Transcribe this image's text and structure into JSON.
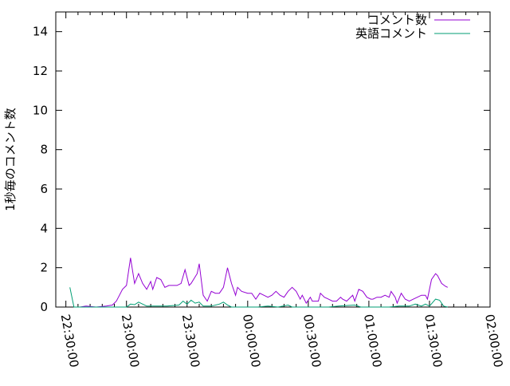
{
  "chart_data": {
    "type": "line",
    "title": "",
    "xlabel": "",
    "ylabel": "1秒毎のコメント数",
    "xlim": [
      "22:25:00",
      "02:00:00"
    ],
    "ylim": [
      0,
      15
    ],
    "grid": false,
    "legend_position": "top-right",
    "x_ticks": [
      "22:30:00",
      "23:00:00",
      "23:30:00",
      "00:00:00",
      "00:30:00",
      "01:00:00",
      "01:30:00",
      "02:00:00"
    ],
    "y_ticks": [
      "0",
      "2",
      "4",
      "6",
      "8",
      "10",
      "12",
      "14"
    ],
    "series": [
      {
        "name": "コメント数",
        "color": "#9400d3",
        "points": [
          [
            "22:37",
            0
          ],
          [
            "22:40",
            0.05
          ],
          [
            "22:45",
            0
          ],
          [
            "22:50",
            0.05
          ],
          [
            "22:53",
            0.1
          ],
          [
            "22:55",
            0.3
          ],
          [
            "22:56",
            0.5
          ],
          [
            "22:58",
            0.9
          ],
          [
            "23:00",
            1.1
          ],
          [
            "23:02",
            2.5
          ],
          [
            "23:04",
            1.2
          ],
          [
            "23:06",
            1.7
          ],
          [
            "23:08",
            1.2
          ],
          [
            "23:10",
            0.9
          ],
          [
            "23:12",
            1.3
          ],
          [
            "23:13",
            0.9
          ],
          [
            "23:15",
            1.5
          ],
          [
            "23:17",
            1.4
          ],
          [
            "23:19",
            1.0
          ],
          [
            "23:21",
            1.1
          ],
          [
            "23:23",
            1.1
          ],
          [
            "23:25",
            1.1
          ],
          [
            "23:27",
            1.2
          ],
          [
            "23:29",
            1.9
          ],
          [
            "23:31",
            1.1
          ],
          [
            "23:32",
            1.2
          ],
          [
            "23:35",
            1.7
          ],
          [
            "23:36",
            2.2
          ],
          [
            "23:38",
            0.6
          ],
          [
            "23:40",
            0.3
          ],
          [
            "23:42",
            0.8
          ],
          [
            "23:44",
            0.7
          ],
          [
            "23:46",
            0.7
          ],
          [
            "23:48",
            1.0
          ],
          [
            "23:50",
            2.0
          ],
          [
            "23:52",
            1.2
          ],
          [
            "23:54",
            0.6
          ],
          [
            "23:55",
            1.0
          ],
          [
            "23:57",
            0.8
          ],
          [
            "00:00",
            0.7
          ],
          [
            "00:02",
            0.7
          ],
          [
            "00:04",
            0.4
          ],
          [
            "00:06",
            0.7
          ],
          [
            "00:08",
            0.6
          ],
          [
            "00:10",
            0.5
          ],
          [
            "00:12",
            0.6
          ],
          [
            "00:14",
            0.8
          ],
          [
            "00:16",
            0.6
          ],
          [
            "00:18",
            0.5
          ],
          [
            "00:20",
            0.8
          ],
          [
            "00:22",
            1.0
          ],
          [
            "00:24",
            0.8
          ],
          [
            "00:26",
            0.4
          ],
          [
            "00:27",
            0.6
          ],
          [
            "00:29",
            0.2
          ],
          [
            "00:31",
            0.5
          ],
          [
            "00:32",
            0.3
          ],
          [
            "00:35",
            0.3
          ],
          [
            "00:36",
            0.7
          ],
          [
            "00:38",
            0.5
          ],
          [
            "00:40",
            0.4
          ],
          [
            "00:42",
            0.3
          ],
          [
            "00:44",
            0.3
          ],
          [
            "00:46",
            0.5
          ],
          [
            "00:47",
            0.4
          ],
          [
            "00:49",
            0.3
          ],
          [
            "00:52",
            0.6
          ],
          [
            "00:53",
            0.3
          ],
          [
            "00:55",
            0.9
          ],
          [
            "00:57",
            0.8
          ],
          [
            "00:59",
            0.5
          ],
          [
            "01:01",
            0.4
          ],
          [
            "01:02",
            0.4
          ],
          [
            "01:04",
            0.5
          ],
          [
            "01:06",
            0.5
          ],
          [
            "01:08",
            0.6
          ],
          [
            "01:10",
            0.5
          ],
          [
            "01:11",
            0.8
          ],
          [
            "01:13",
            0.5
          ],
          [
            "01:14",
            0.2
          ],
          [
            "01:16",
            0.7
          ],
          [
            "01:18",
            0.4
          ],
          [
            "01:20",
            0.3
          ],
          [
            "01:22",
            0.4
          ],
          [
            "01:24",
            0.5
          ],
          [
            "01:26",
            0.6
          ],
          [
            "01:28",
            0.6
          ],
          [
            "01:29",
            0.4
          ],
          [
            "01:31",
            1.4
          ],
          [
            "01:33",
            1.7
          ],
          [
            "01:34",
            1.6
          ],
          [
            "01:36",
            1.2
          ],
          [
            "01:38",
            1.05
          ],
          [
            "01:39",
            1.0
          ]
        ]
      },
      {
        "name": "英語コメント",
        "color": "#009e73",
        "points": [
          [
            "22:32",
            1.0
          ],
          [
            "22:34",
            0
          ],
          [
            "22:40",
            0
          ],
          [
            "23:00",
            0
          ],
          [
            "23:02",
            0.15
          ],
          [
            "23:04",
            0.12
          ],
          [
            "23:06",
            0.25
          ],
          [
            "23:08",
            0.15
          ],
          [
            "23:10",
            0.05
          ],
          [
            "23:15",
            0.05
          ],
          [
            "23:20",
            0.05
          ],
          [
            "23:26",
            0.1
          ],
          [
            "23:28",
            0.3
          ],
          [
            "23:30",
            0.15
          ],
          [
            "23:32",
            0.35
          ],
          [
            "23:34",
            0.2
          ],
          [
            "23:36",
            0.25
          ],
          [
            "23:38",
            0.05
          ],
          [
            "23:42",
            0.05
          ],
          [
            "23:46",
            0.15
          ],
          [
            "23:48",
            0.25
          ],
          [
            "23:50",
            0.1
          ],
          [
            "23:52",
            0
          ],
          [
            "00:05",
            0
          ],
          [
            "00:10",
            0.05
          ],
          [
            "00:15",
            0
          ],
          [
            "00:20",
            0.1
          ],
          [
            "00:22",
            0
          ],
          [
            "00:40",
            0
          ],
          [
            "00:45",
            0.05
          ],
          [
            "00:53",
            0.1
          ],
          [
            "00:56",
            0
          ],
          [
            "01:10",
            0
          ],
          [
            "01:15",
            0.05
          ],
          [
            "01:20",
            0.05
          ],
          [
            "01:23",
            0.15
          ],
          [
            "01:26",
            0.05
          ],
          [
            "01:28",
            0.15
          ],
          [
            "01:30",
            0.05
          ],
          [
            "01:33",
            0.4
          ],
          [
            "01:35",
            0.35
          ],
          [
            "01:37",
            0.05
          ],
          [
            "01:39",
            0
          ]
        ]
      }
    ]
  }
}
